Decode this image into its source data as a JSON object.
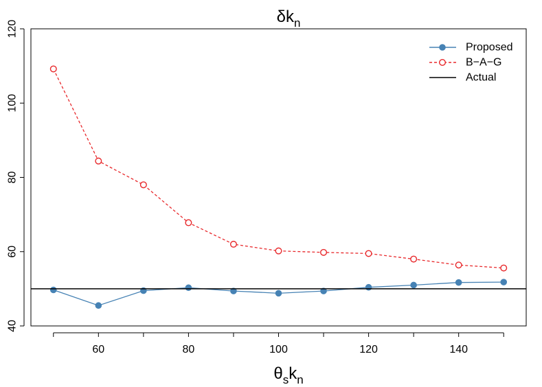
{
  "chart_data": {
    "type": "line",
    "title": {
      "base": "δk",
      "sub": "n"
    },
    "xlabel": {
      "base": "θ",
      "sub1": "s",
      "mid": "k",
      "sub2": "n"
    },
    "ylabel": "",
    "xlim": [
      45,
      155
    ],
    "ylim": [
      40,
      120
    ],
    "x_ticks": [
      60,
      80,
      100,
      120,
      140
    ],
    "y_ticks": [
      40,
      60,
      80,
      100,
      120
    ],
    "x": [
      50,
      60,
      70,
      80,
      90,
      100,
      110,
      120,
      130,
      140,
      150
    ],
    "series": [
      {
        "name": "Proposed",
        "color": "#4682b4",
        "line_style": "solid",
        "marker": "filled-circle",
        "values": [
          49.7,
          45.5,
          49.5,
          50.3,
          49.4,
          48.8,
          49.4,
          50.4,
          51.0,
          51.7,
          51.8
        ]
      },
      {
        "name": "B−A−G",
        "color": "#e8282b",
        "line_style": "dashed",
        "marker": "open-circle",
        "values": [
          109.2,
          84.4,
          78.0,
          67.8,
          62.0,
          60.2,
          59.8,
          59.5,
          58.0,
          56.4,
          55.6
        ]
      },
      {
        "name": "Actual",
        "color": "#000000",
        "line_style": "solid",
        "marker": "none",
        "constant": 50
      }
    ],
    "legend_position": "top-right",
    "grid": false
  }
}
